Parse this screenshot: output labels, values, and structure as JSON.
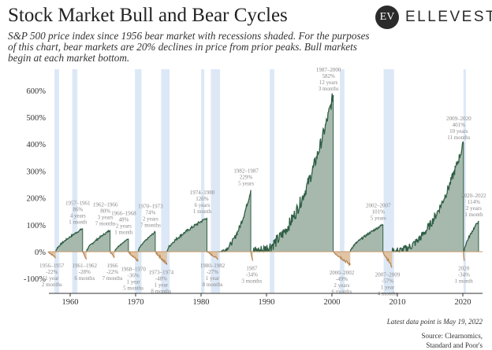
{
  "header": {
    "title": "Stock Market Bull and Bear Cycles",
    "subtitle": "S&P 500 price index since 1956 bear market with recessions shaded. For the purposes of this chart, bear markets are 20% declines in price from prior peaks. Bull markets begin at each market bottom.",
    "logo_mark": "EV",
    "logo_text": "ELLEVEST"
  },
  "footer": {
    "latest": "Latest data point is May 19, 2022",
    "source_1": "Source: Clearnomics,",
    "source_2": "Standard and Poor's"
  },
  "chart_data": {
    "type": "area",
    "title": "Stock Market Bull and Bear Cycles",
    "xlabel": "",
    "ylabel": "",
    "xlim": [
      1955.6,
      2023.5
    ],
    "ylim": [
      -100,
      600
    ],
    "xticks": [
      "1960",
      "1970",
      "1980",
      "1990",
      "2000",
      "2010",
      "2020"
    ],
    "yticks": [
      "600%",
      "500%",
      "400%",
      "300%",
      "200%",
      "100%",
      "0%",
      "-100%"
    ],
    "ytick_values": [
      600,
      500,
      400,
      300,
      200,
      100,
      0,
      -100
    ],
    "colors": {
      "bull_fill": "#a7b9ad",
      "bull_line": "#2f5e45",
      "bear_fill": "#e0c4a4",
      "bear_line": "#b88655",
      "recession": "#dde8f7",
      "baseline": "#c49a6c"
    },
    "recessions": [
      [
        1957.6,
        1958.3
      ],
      [
        1960.3,
        1961.1
      ],
      [
        1969.9,
        1970.9
      ],
      [
        1973.9,
        1975.2
      ],
      [
        1980.0,
        1980.5
      ],
      [
        1981.5,
        1982.9
      ],
      [
        1990.5,
        1991.2
      ],
      [
        2001.2,
        2001.9
      ],
      [
        2007.9,
        2009.5
      ],
      [
        2020.1,
        2020.35
      ]
    ],
    "cycles": [
      {
        "type": "bear",
        "start": 1956.6,
        "end": 1957.8,
        "value": -22,
        "label": [
          "1956–1957",
          "-22%",
          "1 year",
          "2 months"
        ]
      },
      {
        "type": "bull",
        "start": 1957.8,
        "end": 1961.9,
        "value": 86,
        "label": [
          "1957–1961",
          "86%",
          "4 years",
          "1 month"
        ]
      },
      {
        "type": "bear",
        "start": 1961.9,
        "end": 1962.5,
        "value": -28,
        "label": [
          "1961–1962",
          "-28%",
          "6 months"
        ]
      },
      {
        "type": "bull",
        "start": 1962.5,
        "end": 1966.1,
        "value": 80,
        "label": [
          "1962–1966",
          "80%",
          "3 years",
          "7 months"
        ]
      },
      {
        "type": "bear",
        "start": 1966.1,
        "end": 1966.8,
        "value": -22,
        "label": [
          "1966",
          "-22%",
          "7 months"
        ]
      },
      {
        "type": "bull",
        "start": 1966.8,
        "end": 1968.9,
        "value": 48,
        "label": [
          "1966–1968",
          "48%",
          "2 years",
          "1 month"
        ]
      },
      {
        "type": "bear",
        "start": 1968.9,
        "end": 1970.4,
        "value": -36,
        "label": [
          "1968–1970",
          "-36%",
          "1 year",
          "5 months"
        ]
      },
      {
        "type": "bull",
        "start": 1970.4,
        "end": 1973.0,
        "value": 74,
        "label": [
          "1970–1973",
          "74%",
          "2 years",
          "7 months"
        ]
      },
      {
        "type": "bear",
        "start": 1973.0,
        "end": 1974.8,
        "value": -48,
        "label": [
          "1973–1974",
          "-48%",
          "1 year",
          "8 months"
        ]
      },
      {
        "type": "bull",
        "start": 1974.8,
        "end": 1980.9,
        "value": 126,
        "label": [
          "1974–1980",
          "126%",
          "6 years",
          "1 month"
        ]
      },
      {
        "type": "bear",
        "start": 1980.9,
        "end": 1982.6,
        "value": -27,
        "label": [
          "1980–1982",
          "-27%",
          "1 year",
          "8 months"
        ]
      },
      {
        "type": "bull",
        "start": 1982.6,
        "end": 1987.6,
        "value": 229,
        "label": [
          "1982–1987",
          "229%",
          "5 years"
        ]
      },
      {
        "type": "bear",
        "start": 1987.6,
        "end": 1987.9,
        "value": -34,
        "label": [
          "1987",
          "-34%",
          "3 months"
        ]
      },
      {
        "type": "bull",
        "start": 1987.9,
        "end": 2000.2,
        "value": 582,
        "label": [
          "1987–2000",
          "582%",
          "12 years",
          "3 months"
        ]
      },
      {
        "type": "bear",
        "start": 2000.2,
        "end": 2002.8,
        "value": -49,
        "label": [
          "2000–2002",
          "-49%",
          "2 years",
          "6 months"
        ]
      },
      {
        "type": "bull",
        "start": 2002.8,
        "end": 2007.8,
        "value": 101,
        "label": [
          "2002–2007",
          "101%",
          "5 years"
        ]
      },
      {
        "type": "bear",
        "start": 2007.8,
        "end": 2009.2,
        "value": -57,
        "label": [
          "2007–2009",
          "-57%",
          "1 year",
          "4 months"
        ]
      },
      {
        "type": "bull",
        "start": 2009.2,
        "end": 2020.1,
        "value": 401,
        "label": [
          "2009–2020",
          "401%",
          "10 years",
          "11 months"
        ]
      },
      {
        "type": "bear",
        "start": 2020.1,
        "end": 2020.2,
        "value": -34,
        "label": [
          "2020",
          "-34%",
          "1 month"
        ]
      },
      {
        "type": "bull",
        "start": 2020.2,
        "end": 2022.4,
        "value": 114,
        "label": [
          "2020–2022",
          "114%",
          "2 years",
          "1 month"
        ]
      }
    ]
  }
}
